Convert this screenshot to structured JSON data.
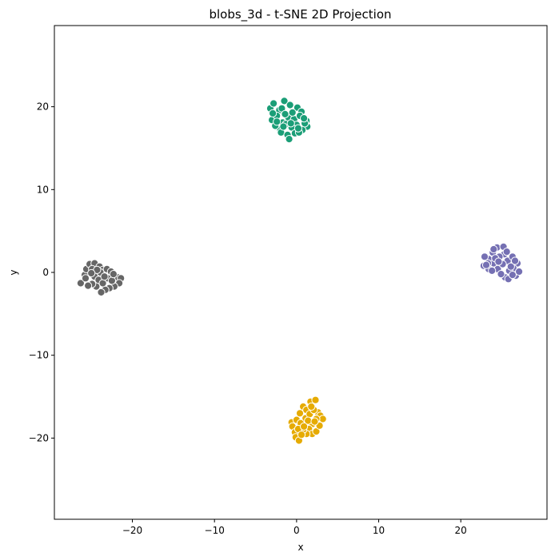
{
  "chart_data": {
    "type": "scatter",
    "title": "blobs_3d - t-SNE 2D Projection",
    "xlabel": "x",
    "ylabel": "y",
    "xlim": [
      -29.5,
      30.5
    ],
    "ylim": [
      -29.8,
      29.8
    ],
    "xticks": [
      -20,
      -10,
      0,
      10,
      20
    ],
    "yticks": [
      -20,
      -10,
      0,
      10,
      20
    ],
    "xtick_labels": [
      "−20",
      "−10",
      "0",
      "10",
      "20"
    ],
    "ytick_labels": [
      "−20",
      "−10",
      "0",
      "10",
      "20"
    ],
    "grid": false,
    "legend": "none",
    "series": [
      {
        "color": "#1b9e77",
        "points": [
          [
            -3.2,
            19.8
          ],
          [
            -2.8,
            20.4
          ],
          [
            -2.1,
            19.6
          ],
          [
            -1.5,
            20.7
          ],
          [
            -0.8,
            20.2
          ],
          [
            0.1,
            19.9
          ],
          [
            0.6,
            19.4
          ],
          [
            -3.0,
            18.4
          ],
          [
            -2.4,
            18.9
          ],
          [
            -1.7,
            18.1
          ],
          [
            -1.0,
            18.7
          ],
          [
            -0.3,
            18.5
          ],
          [
            0.4,
            18.9
          ],
          [
            1.2,
            18.3
          ],
          [
            1.3,
            17.6
          ],
          [
            0.7,
            17.2
          ],
          [
            0.0,
            17.8
          ],
          [
            -0.6,
            17.5
          ],
          [
            -1.3,
            17.9
          ],
          [
            -2.0,
            17.3
          ],
          [
            -2.6,
            17.7
          ],
          [
            -1.9,
            16.9
          ],
          [
            -1.1,
            16.6
          ],
          [
            -0.2,
            16.8
          ],
          [
            0.3,
            16.9
          ],
          [
            -0.9,
            16.1
          ],
          [
            1.0,
            18.0
          ],
          [
            -2.4,
            18.2
          ],
          [
            -1.8,
            19.8
          ],
          [
            -0.5,
            19.3
          ],
          [
            0.9,
            18.6
          ],
          [
            -1.4,
            19.1
          ],
          [
            -2.9,
            19.2
          ],
          [
            0.2,
            17.4
          ],
          [
            -0.7,
            18.0
          ],
          [
            -1.6,
            17.6
          ]
        ]
      },
      {
        "color": "#7570b3",
        "points": [
          [
            22.8,
            0.8
          ],
          [
            23.4,
            1.6
          ],
          [
            23.9,
            2.4
          ],
          [
            24.4,
            3.0
          ],
          [
            25.2,
            3.1
          ],
          [
            25.3,
            2.2
          ],
          [
            24.7,
            1.9
          ],
          [
            24.0,
            1.1
          ],
          [
            23.4,
            0.4
          ],
          [
            22.9,
            1.9
          ],
          [
            25.7,
            1.4
          ],
          [
            26.3,
            1.9
          ],
          [
            26.9,
            1.1
          ],
          [
            26.4,
            0.5
          ],
          [
            25.9,
            0.2
          ],
          [
            25.4,
            -0.6
          ],
          [
            25.8,
            -0.8
          ],
          [
            26.7,
            -0.4
          ],
          [
            27.1,
            0.1
          ],
          [
            24.5,
            0.4
          ],
          [
            25.1,
            1.0
          ],
          [
            24.2,
            1.7
          ],
          [
            23.8,
            0.2
          ],
          [
            26.1,
            0.7
          ],
          [
            24.9,
            -0.2
          ],
          [
            23.3,
            1.1
          ],
          [
            25.6,
            2.5
          ],
          [
            26.6,
            1.4
          ],
          [
            24.6,
            1.3
          ],
          [
            23.1,
            0.9
          ],
          [
            26.3,
            -0.3
          ],
          [
            24.0,
            2.8
          ]
        ]
      },
      {
        "color": "#666666",
        "points": [
          [
            -26.3,
            -1.3
          ],
          [
            -25.8,
            -0.3
          ],
          [
            -25.6,
            0.4
          ],
          [
            -25.2,
            1.0
          ],
          [
            -24.6,
            1.1
          ],
          [
            -24.0,
            0.7
          ],
          [
            -23.6,
            0.3
          ],
          [
            -23.1,
            0.4
          ],
          [
            -22.6,
            0.1
          ],
          [
            -22.1,
            -0.4
          ],
          [
            -21.8,
            -0.6
          ],
          [
            -21.4,
            -0.7
          ],
          [
            -21.6,
            -1.3
          ],
          [
            -22.2,
            -1.7
          ],
          [
            -22.8,
            -1.9
          ],
          [
            -23.3,
            -2.1
          ],
          [
            -23.8,
            -2.4
          ],
          [
            -24.4,
            -1.7
          ],
          [
            -24.9,
            -1.4
          ],
          [
            -25.4,
            -1.6
          ],
          [
            -24.6,
            -0.5
          ],
          [
            -24.1,
            -0.9
          ],
          [
            -23.6,
            -1.3
          ],
          [
            -23.0,
            -0.7
          ],
          [
            -22.5,
            -1.0
          ],
          [
            -24.9,
            0.4
          ],
          [
            -25.7,
            -0.7
          ],
          [
            -23.9,
            0.0
          ],
          [
            -24.3,
            0.3
          ],
          [
            -22.3,
            -0.2
          ],
          [
            -23.4,
            -0.5
          ],
          [
            -25.0,
            -0.1
          ]
        ]
      },
      {
        "color": "#e6ab02",
        "points": [
          [
            -0.6,
            -18.1
          ],
          [
            -0.5,
            -18.6
          ],
          [
            -0.2,
            -19.3
          ],
          [
            -0.1,
            -19.9
          ],
          [
            0.3,
            -20.3
          ],
          [
            0.0,
            -17.8
          ],
          [
            0.4,
            -17.0
          ],
          [
            0.8,
            -16.2
          ],
          [
            1.2,
            -16.6
          ],
          [
            1.7,
            -15.6
          ],
          [
            2.3,
            -15.4
          ],
          [
            2.6,
            -16.9
          ],
          [
            2.9,
            -17.3
          ],
          [
            3.2,
            -17.7
          ],
          [
            2.4,
            -17.7
          ],
          [
            1.9,
            -18.3
          ],
          [
            1.5,
            -18.9
          ],
          [
            1.9,
            -19.5
          ],
          [
            2.4,
            -19.2
          ],
          [
            1.2,
            -19.5
          ],
          [
            0.8,
            -19.0
          ],
          [
            0.5,
            -18.2
          ],
          [
            1.1,
            -17.6
          ],
          [
            1.6,
            -17.1
          ],
          [
            2.1,
            -16.6
          ],
          [
            0.2,
            -18.9
          ],
          [
            1.4,
            -17.9
          ],
          [
            2.8,
            -18.5
          ],
          [
            0.9,
            -18.6
          ],
          [
            1.8,
            -16.2
          ],
          [
            0.6,
            -19.6
          ],
          [
            2.2,
            -18.0
          ]
        ]
      }
    ]
  }
}
